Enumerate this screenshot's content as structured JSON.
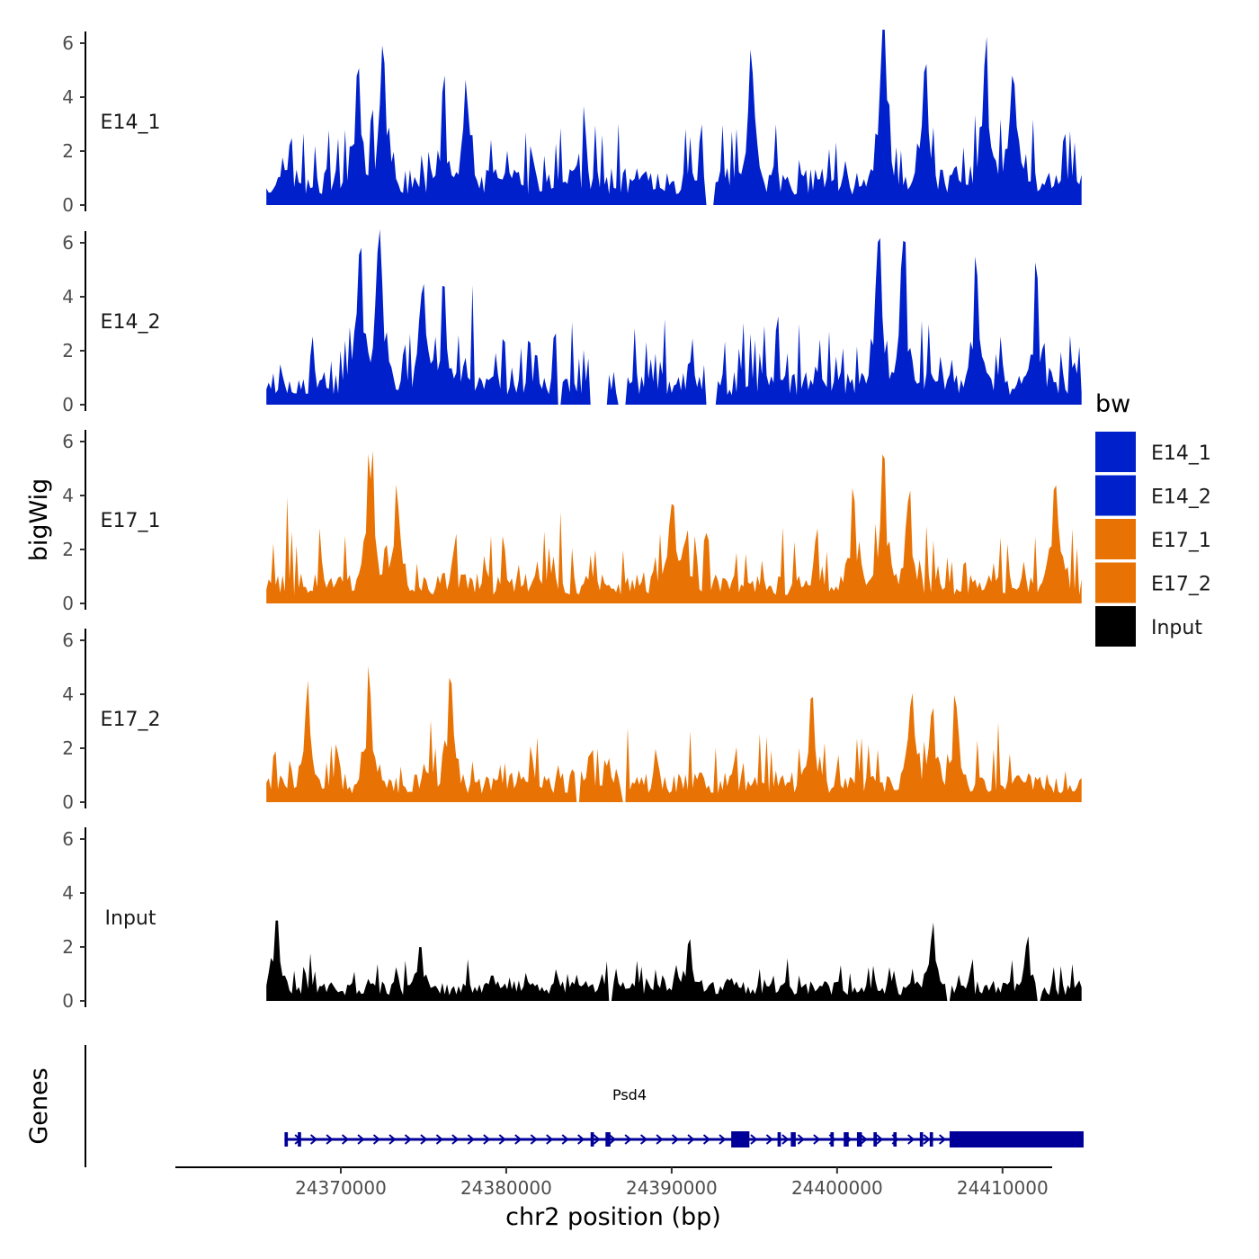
{
  "chart_data": {
    "type": "area",
    "chromosome": "chr2",
    "xlabel": "chr2 position (bp)",
    "ylabel": "bigWig",
    "genes_label": "Genes",
    "xlim": [
      24360000,
      24413000
    ],
    "data_range": [
      24365500,
      24414900
    ],
    "ylim": [
      0,
      6.5
    ],
    "y_ticks": [
      0,
      2,
      4,
      6
    ],
    "x_ticks": [
      24370000,
      24380000,
      24390000,
      24400000,
      24410000
    ],
    "x_tick_labels": [
      "24370000",
      "24380000",
      "24390000",
      "24400000",
      "24410000"
    ],
    "legend": {
      "title": "bw",
      "position": "right",
      "entries": [
        {
          "label": "E14_1",
          "color": "#0020CC"
        },
        {
          "label": "E14_2",
          "color": "#0020CC"
        },
        {
          "label": "E17_1",
          "color": "#E87203"
        },
        {
          "label": "E17_2",
          "color": "#E87203"
        },
        {
          "label": "Input",
          "color": "#000000"
        }
      ]
    },
    "series": [
      {
        "name": "E14_1",
        "color": "#0020CC",
        "seed": 11,
        "base": 1.1,
        "spread": 2.4,
        "peaks": [
          [
            24371000,
            4.6
          ],
          [
            24372600,
            5.1
          ],
          [
            24376200,
            3.6
          ],
          [
            24377600,
            3.7
          ],
          [
            24394800,
            4.7
          ],
          [
            24402800,
            6.3
          ],
          [
            24405300,
            4.7
          ],
          [
            24409000,
            5.2
          ],
          [
            24410600,
            4.1
          ]
        ],
        "gaps": [
          [
            24392000,
            24392600
          ]
        ]
      },
      {
        "name": "E14_2",
        "color": "#0020CC",
        "seed": 23,
        "base": 1.0,
        "spread": 2.2,
        "peaks": [
          [
            24371200,
            4.8
          ],
          [
            24372300,
            5.9
          ],
          [
            24375000,
            3.5
          ],
          [
            24376200,
            3.6
          ],
          [
            24402500,
            5.8
          ],
          [
            24404000,
            4.7
          ],
          [
            24408400,
            4.3
          ],
          [
            24412000,
            3.8
          ]
        ],
        "gaps": [
          [
            24383100,
            24383400
          ],
          [
            24385000,
            24386200
          ],
          [
            24386700,
            24387200
          ],
          [
            24392000,
            24392700
          ]
        ]
      },
      {
        "name": "E17_1",
        "color": "#E87203",
        "seed": 37,
        "base": 0.9,
        "spread": 1.9,
        "peaks": [
          [
            24371800,
            4.5
          ],
          [
            24373400,
            3.2
          ],
          [
            24390000,
            3.0
          ],
          [
            24401000,
            3.3
          ],
          [
            24402800,
            4.4
          ],
          [
            24404300,
            3.4
          ],
          [
            24413200,
            4.2
          ]
        ],
        "gaps": []
      },
      {
        "name": "E17_2",
        "color": "#E87203",
        "seed": 53,
        "base": 0.9,
        "spread": 1.8,
        "peaks": [
          [
            24368000,
            3.5
          ],
          [
            24371700,
            4.0
          ],
          [
            24376600,
            3.7
          ],
          [
            24398500,
            3.1
          ],
          [
            24404500,
            3.6
          ],
          [
            24405800,
            3.3
          ],
          [
            24407200,
            3.1
          ]
        ],
        "gaps": [
          [
            24384200,
            24384500
          ],
          [
            24387000,
            24387300
          ]
        ]
      },
      {
        "name": "Input",
        "color": "#000000",
        "seed": 71,
        "base": 0.6,
        "spread": 1.0,
        "peaks": [
          [
            24366100,
            2.5
          ],
          [
            24374800,
            1.8
          ],
          [
            24391000,
            1.9
          ],
          [
            24405800,
            2.2
          ],
          [
            24411500,
            1.9
          ]
        ],
        "gaps": [
          [
            24386100,
            24386400
          ],
          [
            24406600,
            24406900
          ],
          [
            24412000,
            24412300
          ]
        ]
      }
    ],
    "gene": {
      "name": "Psd4",
      "start": 24366600,
      "end": 24414900,
      "strand": "+",
      "color": "#000099",
      "exons": [
        [
          24366600,
          24366800
        ],
        [
          24367400,
          24367600
        ],
        [
          24385100,
          24385300
        ],
        [
          24386000,
          24386300
        ],
        [
          24393600,
          24394700
        ],
        [
          24396400,
          24396600
        ],
        [
          24397200,
          24397500
        ],
        [
          24399600,
          24399800
        ],
        [
          24400400,
          24400700
        ],
        [
          24401200,
          24401500
        ],
        [
          24402200,
          24402400
        ],
        [
          24403400,
          24403600
        ],
        [
          24405000,
          24405200
        ],
        [
          24405600,
          24405800
        ],
        [
          24406800,
          24414900
        ]
      ]
    }
  }
}
